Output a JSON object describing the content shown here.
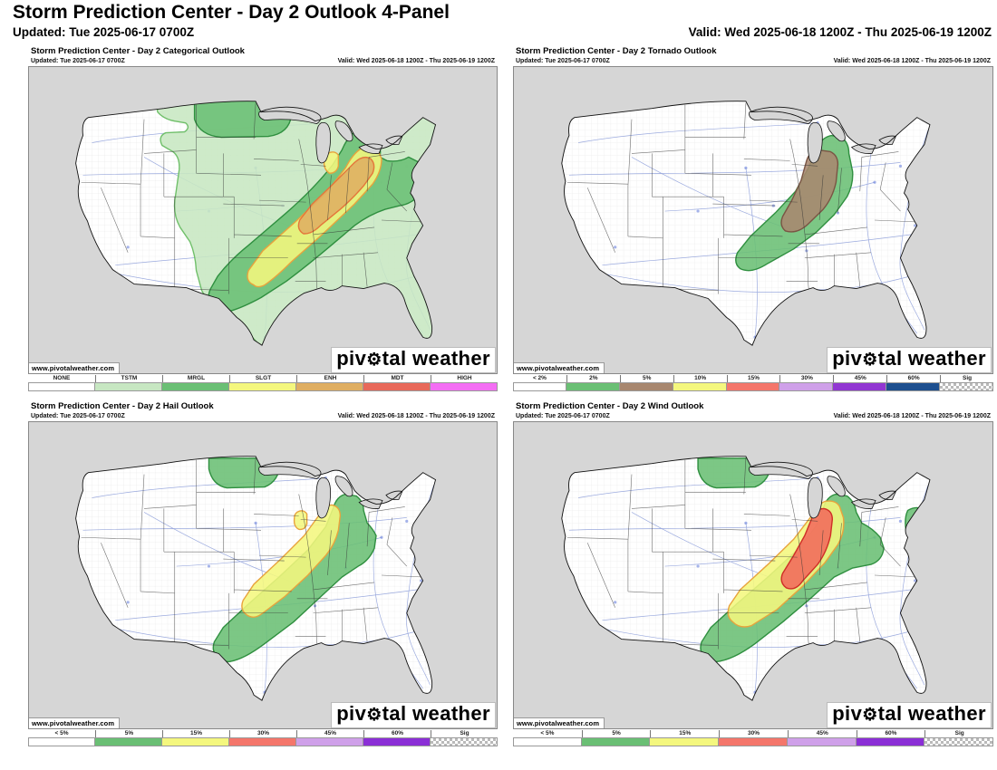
{
  "header": {
    "title": "Storm Prediction Center - Day 2 Outlook 4-Panel",
    "updated": "Updated: Tue 2025-06-17 0700Z",
    "valid": "Valid: Wed 2025-06-18 1200Z - Thu 2025-06-19 1200Z"
  },
  "branding": {
    "watermark": "www.pivotalweather.com",
    "logo_prefix": "piv",
    "logo_gear": "⚙",
    "logo_suffix": "tal weather"
  },
  "panels": [
    {
      "key": "categorical",
      "title": "Storm Prediction Center - Day 2 Categorical Outlook",
      "updated": "Updated: Tue 2025-06-17 0700Z",
      "valid": "Valid: Wed 2025-06-18 1200Z - Thu 2025-06-19 1200Z",
      "legend": [
        {
          "label": "NONE",
          "color": "#ffffff"
        },
        {
          "label": "TSTM",
          "color": "#c7e7c2"
        },
        {
          "label": "MRGL",
          "color": "#6abf74"
        },
        {
          "label": "SLGT",
          "color": "#f4f77e"
        },
        {
          "label": "ENH",
          "color": "#dfae62"
        },
        {
          "label": "MDT",
          "color": "#e8695a"
        },
        {
          "label": "HIGH",
          "color": "#f46ef4"
        }
      ],
      "areas": [
        {
          "name": "TSTM",
          "fill": "#c7e7c2",
          "stroke": "#6fbf69"
        },
        {
          "name": "MRGL",
          "fill": "#6abf74",
          "stroke": "#2f8f3f"
        },
        {
          "name": "SLGT",
          "fill": "#f4f77e",
          "stroke": "#e8a33d"
        },
        {
          "name": "ENH",
          "fill": "#dfae62",
          "stroke": "#e4763b"
        }
      ]
    },
    {
      "key": "tornado",
      "title": "Storm Prediction Center - Day 2 Tornado Outlook",
      "updated": "Updated: Tue 2025-06-17 0700Z",
      "valid": "Valid: Wed 2025-06-18 1200Z - Thu 2025-06-19 1200Z",
      "legend": [
        {
          "label": "< 2%",
          "color": "#ffffff"
        },
        {
          "label": "2%",
          "color": "#6abf74"
        },
        {
          "label": "5%",
          "color": "#a8876f"
        },
        {
          "label": "10%",
          "color": "#f4f77e"
        },
        {
          "label": "15%",
          "color": "#f4766b"
        },
        {
          "label": "30%",
          "color": "#cfa0e9"
        },
        {
          "label": "45%",
          "color": "#9136d2"
        },
        {
          "label": "60%",
          "color": "#1d4f8f"
        },
        {
          "label": "Sig",
          "color": "checker"
        }
      ],
      "areas": [
        {
          "name": "2%",
          "fill": "#6abf74",
          "stroke": "#2f8f3f"
        },
        {
          "name": "5%",
          "fill": "#a8876f",
          "stroke": "#7a5544"
        }
      ]
    },
    {
      "key": "hail",
      "title": "Storm Prediction Center - Day 2 Hail Outlook",
      "updated": "Updated: Tue 2025-06-17 0700Z",
      "valid": "Valid: Wed 2025-06-18 1200Z - Thu 2025-06-19 1200Z",
      "legend": [
        {
          "label": "< 5%",
          "color": "#ffffff"
        },
        {
          "label": "5%",
          "color": "#6abf74"
        },
        {
          "label": "15%",
          "color": "#f4f77e"
        },
        {
          "label": "30%",
          "color": "#f4766b"
        },
        {
          "label": "45%",
          "color": "#cfa0e9"
        },
        {
          "label": "60%",
          "color": "#8b2fd6"
        },
        {
          "label": "Sig",
          "color": "checker"
        }
      ],
      "areas": [
        {
          "name": "5%",
          "fill": "#6abf74",
          "stroke": "#2f8f3f"
        },
        {
          "name": "15%",
          "fill": "#f4f77e",
          "stroke": "#e8a33d"
        }
      ]
    },
    {
      "key": "wind",
      "title": "Storm Prediction Center - Day 2 Wind Outlook",
      "updated": "Updated: Tue 2025-06-17 0700Z",
      "valid": "Valid: Wed 2025-06-18 1200Z - Thu 2025-06-19 1200Z",
      "legend": [
        {
          "label": "< 5%",
          "color": "#ffffff"
        },
        {
          "label": "5%",
          "color": "#6abf74"
        },
        {
          "label": "15%",
          "color": "#f4f77e"
        },
        {
          "label": "30%",
          "color": "#f4766b"
        },
        {
          "label": "45%",
          "color": "#cfa0e9"
        },
        {
          "label": "60%",
          "color": "#8b2fd6"
        },
        {
          "label": "Sig",
          "color": "checker"
        }
      ],
      "areas": [
        {
          "name": "5%",
          "fill": "#6abf74",
          "stroke": "#2f8f3f"
        },
        {
          "name": "15%",
          "fill": "#f4f77e",
          "stroke": "#e8a33d"
        },
        {
          "name": "30%",
          "fill": "#f2695c",
          "stroke": "#cf2f27"
        }
      ]
    }
  ]
}
